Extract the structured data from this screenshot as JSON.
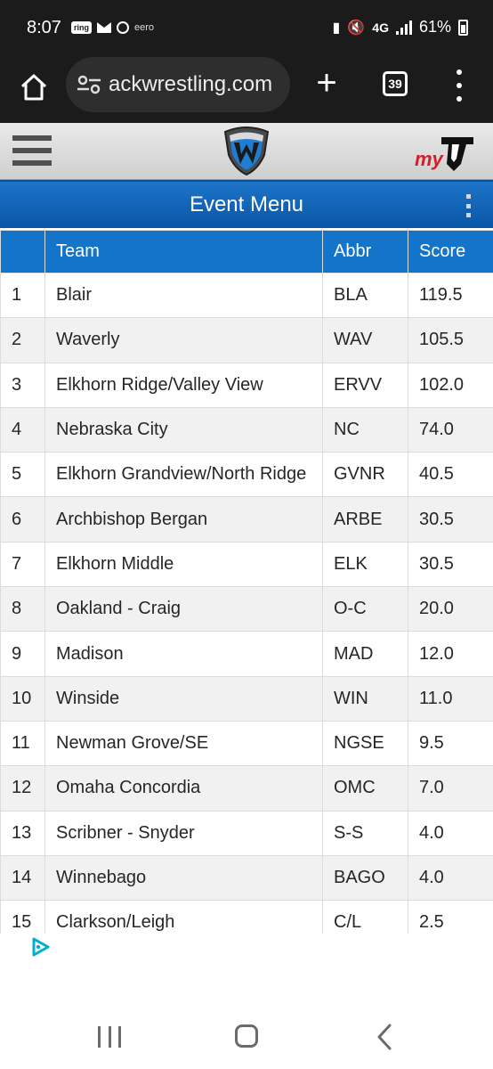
{
  "status": {
    "time": "8:07",
    "ring_label": "ring",
    "eero_label": "eero",
    "network": "4G",
    "battery": "61%"
  },
  "browser": {
    "url": "ackwrestling.com",
    "tab_count": "39"
  },
  "header": {
    "my_label": "my"
  },
  "event_menu": {
    "title": "Event Menu"
  },
  "table": {
    "headers": {
      "rank": "",
      "team": "Team",
      "abbr": "Abbr",
      "score": "Score"
    },
    "rows": [
      {
        "rank": "1",
        "team": "Blair",
        "abbr": "BLA",
        "score": "119.5"
      },
      {
        "rank": "2",
        "team": "Waverly",
        "abbr": "WAV",
        "score": "105.5"
      },
      {
        "rank": "3",
        "team": "Elkhorn Ridge/Valley View",
        "abbr": "ERVV",
        "score": "102.0"
      },
      {
        "rank": "4",
        "team": "Nebraska City",
        "abbr": "NC",
        "score": "74.0"
      },
      {
        "rank": "5",
        "team": "Elkhorn Grandview/North Ridge",
        "abbr": "GVNR",
        "score": "40.5"
      },
      {
        "rank": "6",
        "team": "Archbishop Bergan",
        "abbr": "ARBE",
        "score": "30.5"
      },
      {
        "rank": "7",
        "team": "Elkhorn Middle",
        "abbr": "ELK",
        "score": "30.5"
      },
      {
        "rank": "8",
        "team": "Oakland - Craig",
        "abbr": "O-C",
        "score": "20.0"
      },
      {
        "rank": "9",
        "team": "Madison",
        "abbr": "MAD",
        "score": "12.0"
      },
      {
        "rank": "10",
        "team": "Winside",
        "abbr": "WIN",
        "score": "11.0"
      },
      {
        "rank": "11",
        "team": "Newman Grove/SE",
        "abbr": "NGSE",
        "score": "9.5"
      },
      {
        "rank": "12",
        "team": "Omaha Concordia",
        "abbr": "OMC",
        "score": "7.0"
      },
      {
        "rank": "13",
        "team": "Scribner - Snyder",
        "abbr": "S-S",
        "score": "4.0"
      },
      {
        "rank": "14",
        "team": "Winnebago",
        "abbr": "BAGO",
        "score": "4.0"
      },
      {
        "rank": "15",
        "team": "Clarkson/Leigh",
        "abbr": "C/L",
        "score": "2.5"
      }
    ]
  },
  "colors": {
    "accent_blue": "#1474c9",
    "brand_red": "#d32027",
    "status_bg": "#1b1b1b"
  },
  "icons": {
    "home": "home-icon",
    "site_settings": "tune-icon",
    "new_tab": "plus-icon",
    "tab_switcher": "tabs-icon",
    "overflow": "more-vert-icon",
    "site_menu": "hamburger-icon",
    "site_logo": "w-shield-logo",
    "ad_choices": "adchoices-icon"
  }
}
